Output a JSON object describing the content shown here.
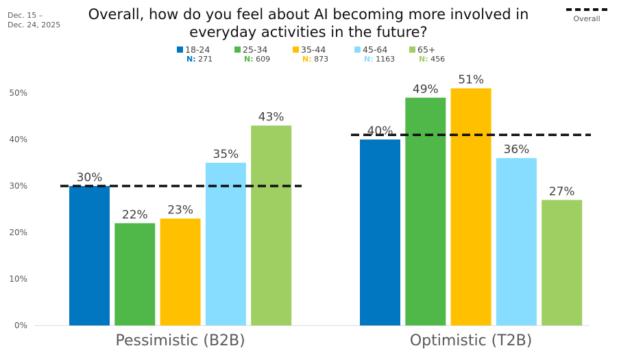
{
  "date_range": [
    "Dec. 15 –",
    "Dec. 24, 2025"
  ],
  "overall_legend_label": "Overall",
  "chart_data": {
    "type": "bar",
    "title": "Overall, how do you feel about AI becoming more involved in everyday activities in the future?",
    "categories": [
      "Pessimistic (B2B)",
      "Optimistic (T2B)"
    ],
    "series": [
      {
        "name": "18-24",
        "n_label": "N:",
        "n": "271",
        "color": "#0077C0",
        "values": [
          30,
          40
        ],
        "labels": [
          "30%",
          "40%"
        ]
      },
      {
        "name": "25-34",
        "n_label": "N:",
        "n": "609",
        "color": "#50B848",
        "values": [
          22,
          49
        ],
        "labels": [
          "22%",
          "49%"
        ]
      },
      {
        "name": "35-44",
        "n_label": "N:",
        "n": "873",
        "color": "#FFC000",
        "values": [
          23,
          51
        ],
        "labels": [
          "23%",
          "51%"
        ]
      },
      {
        "name": "45-64",
        "n_label": "N:",
        "n": "1163",
        "color": "#87DDFF",
        "values": [
          35,
          36
        ],
        "labels": [
          "35%",
          "36%"
        ]
      },
      {
        "name": "65+",
        "n_label": "N:",
        "n": "456",
        "color": "#9FCE63",
        "values": [
          43,
          27
        ],
        "labels": [
          "43%",
          "27%"
        ]
      }
    ],
    "overall": {
      "name": "Overall",
      "values": [
        30,
        41
      ],
      "style": "dashed",
      "color": "#111111"
    },
    "xlabel": "",
    "ylabel": "",
    "ylim": [
      0,
      50
    ],
    "yticks": [
      0,
      10,
      20,
      30,
      40,
      50
    ],
    "ytick_labels": [
      "0%",
      "10%",
      "20%",
      "30%",
      "40%",
      "50%"
    ],
    "grid": false,
    "legend_position": "top-center"
  }
}
